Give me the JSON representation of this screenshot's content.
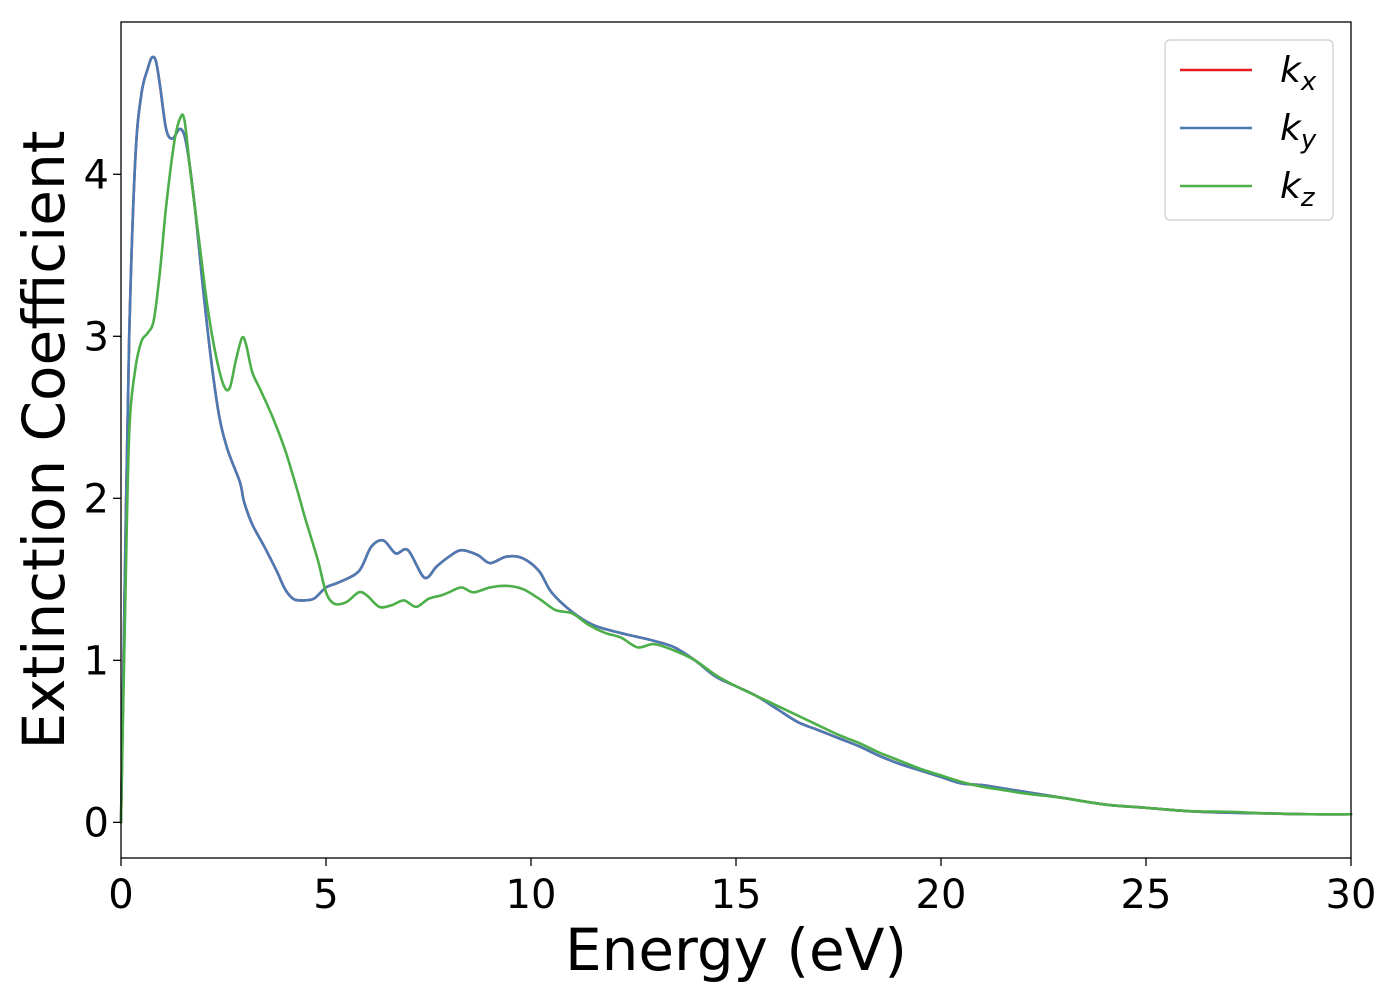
{
  "chart_data": {
    "type": "line",
    "title": "",
    "xlabel": "Energy (eV)",
    "ylabel": "Extinction Coefficient",
    "xlim": [
      0,
      30
    ],
    "ylim": [
      -0.22,
      4.94
    ],
    "xticks": [
      0,
      5,
      10,
      15,
      20,
      25,
      30
    ],
    "xtick_labels": [
      "0",
      "5",
      "10",
      "15",
      "20",
      "25",
      "30"
    ],
    "yticks": [
      0,
      1,
      2,
      3,
      4
    ],
    "ytick_labels": [
      "0",
      "1",
      "2",
      "3",
      "4"
    ],
    "grid": false,
    "legend_position": "top-right",
    "series": [
      {
        "name": "k",
        "subscript": "x",
        "color": "#e41a1c",
        "x": [
          0,
          0.1,
          0.2,
          0.35,
          0.5,
          0.65,
          0.75,
          0.85,
          0.95,
          1.1,
          1.25,
          1.45,
          1.6,
          1.8,
          2.0,
          2.2,
          2.4,
          2.6,
          2.9,
          3.0,
          3.2,
          3.5,
          3.8,
          4.0,
          4.2,
          4.4,
          4.7,
          5.0,
          5.3,
          5.8,
          6.1,
          6.4,
          6.7,
          7.0,
          7.4,
          7.7,
          8.0,
          8.3,
          8.7,
          9.0,
          9.4,
          9.8,
          10.2,
          10.5,
          11.0,
          11.5,
          12.0,
          12.5,
          13.0,
          13.5,
          14.0,
          14.5,
          15.0,
          15.5,
          16.0,
          16.5,
          17.0,
          17.5,
          18.0,
          18.5,
          19.0,
          19.5,
          20.0,
          20.5,
          21.0,
          21.5,
          22.0,
          22.5,
          23.0,
          24.0,
          25.0,
          26.0,
          27.0,
          28.0,
          29.0,
          30.0
        ],
        "values": [
          0.0,
          1.6,
          3.0,
          4.1,
          4.5,
          4.65,
          4.72,
          4.7,
          4.55,
          4.28,
          4.22,
          4.28,
          4.18,
          3.8,
          3.3,
          2.85,
          2.5,
          2.3,
          2.1,
          1.98,
          1.84,
          1.7,
          1.55,
          1.44,
          1.38,
          1.37,
          1.38,
          1.45,
          1.48,
          1.55,
          1.7,
          1.74,
          1.66,
          1.68,
          1.51,
          1.58,
          1.64,
          1.68,
          1.65,
          1.6,
          1.64,
          1.63,
          1.55,
          1.42,
          1.3,
          1.22,
          1.18,
          1.15,
          1.12,
          1.08,
          1.0,
          0.9,
          0.84,
          0.78,
          0.7,
          0.62,
          0.57,
          0.52,
          0.47,
          0.41,
          0.36,
          0.32,
          0.28,
          0.24,
          0.23,
          0.21,
          0.19,
          0.17,
          0.15,
          0.11,
          0.09,
          0.07,
          0.06,
          0.055,
          0.05,
          0.05
        ]
      },
      {
        "name": "k",
        "subscript": "y",
        "color": "#4a7bb5",
        "x": [
          0,
          0.1,
          0.2,
          0.35,
          0.5,
          0.65,
          0.75,
          0.85,
          0.95,
          1.1,
          1.25,
          1.45,
          1.6,
          1.8,
          2.0,
          2.2,
          2.4,
          2.6,
          2.9,
          3.0,
          3.2,
          3.5,
          3.8,
          4.0,
          4.2,
          4.4,
          4.7,
          5.0,
          5.3,
          5.8,
          6.1,
          6.4,
          6.7,
          7.0,
          7.4,
          7.7,
          8.0,
          8.3,
          8.7,
          9.0,
          9.4,
          9.8,
          10.2,
          10.5,
          11.0,
          11.5,
          12.0,
          12.5,
          13.0,
          13.5,
          14.0,
          14.5,
          15.0,
          15.5,
          16.0,
          16.5,
          17.0,
          17.5,
          18.0,
          18.5,
          19.0,
          19.5,
          20.0,
          20.5,
          21.0,
          21.5,
          22.0,
          22.5,
          23.0,
          24.0,
          25.0,
          26.0,
          27.0,
          28.0,
          29.0,
          30.0
        ],
        "values": [
          0.0,
          1.6,
          3.0,
          4.1,
          4.5,
          4.65,
          4.72,
          4.7,
          4.55,
          4.28,
          4.22,
          4.28,
          4.18,
          3.8,
          3.3,
          2.85,
          2.5,
          2.3,
          2.1,
          1.98,
          1.84,
          1.7,
          1.55,
          1.44,
          1.38,
          1.37,
          1.38,
          1.45,
          1.48,
          1.55,
          1.7,
          1.74,
          1.66,
          1.68,
          1.51,
          1.58,
          1.64,
          1.68,
          1.65,
          1.6,
          1.64,
          1.63,
          1.55,
          1.42,
          1.3,
          1.22,
          1.18,
          1.15,
          1.12,
          1.08,
          1.0,
          0.9,
          0.84,
          0.78,
          0.7,
          0.62,
          0.57,
          0.52,
          0.47,
          0.41,
          0.36,
          0.32,
          0.28,
          0.24,
          0.23,
          0.21,
          0.19,
          0.17,
          0.15,
          0.11,
          0.09,
          0.07,
          0.06,
          0.055,
          0.05,
          0.05
        ]
      },
      {
        "name": "k",
        "subscript": "z",
        "color": "#4daf4a",
        "x": [
          0,
          0.1,
          0.2,
          0.35,
          0.5,
          0.65,
          0.8,
          0.95,
          1.1,
          1.3,
          1.45,
          1.55,
          1.7,
          1.9,
          2.1,
          2.3,
          2.5,
          2.65,
          2.8,
          2.95,
          3.05,
          3.2,
          3.4,
          3.7,
          4.0,
          4.3,
          4.5,
          4.8,
          5.0,
          5.2,
          5.5,
          5.8,
          6.0,
          6.3,
          6.6,
          6.9,
          7.2,
          7.5,
          7.8,
          8.0,
          8.3,
          8.6,
          9.0,
          9.4,
          9.8,
          10.2,
          10.6,
          11.0,
          11.4,
          11.8,
          12.2,
          12.6,
          13.0,
          13.5,
          14.0,
          14.5,
          15.0,
          15.5,
          16.0,
          16.5,
          17.0,
          17.5,
          18.0,
          18.5,
          19.0,
          19.5,
          20.0,
          20.5,
          21.0,
          21.5,
          22.0,
          22.5,
          23.0,
          24.0,
          25.0,
          26.0,
          27.0,
          28.0,
          29.0,
          30.0
        ],
        "values": [
          0.0,
          1.3,
          2.4,
          2.8,
          2.97,
          3.02,
          3.1,
          3.4,
          3.8,
          4.2,
          4.35,
          4.33,
          4.0,
          3.6,
          3.2,
          2.9,
          2.7,
          2.68,
          2.85,
          2.99,
          2.95,
          2.78,
          2.67,
          2.5,
          2.3,
          2.05,
          1.87,
          1.62,
          1.42,
          1.35,
          1.36,
          1.42,
          1.4,
          1.33,
          1.34,
          1.37,
          1.33,
          1.38,
          1.4,
          1.42,
          1.45,
          1.42,
          1.45,
          1.46,
          1.44,
          1.38,
          1.31,
          1.29,
          1.22,
          1.17,
          1.14,
          1.08,
          1.1,
          1.06,
          1.0,
          0.91,
          0.84,
          0.78,
          0.72,
          0.66,
          0.6,
          0.54,
          0.49,
          0.43,
          0.38,
          0.33,
          0.29,
          0.25,
          0.22,
          0.2,
          0.18,
          0.165,
          0.15,
          0.11,
          0.09,
          0.07,
          0.065,
          0.055,
          0.05,
          0.05
        ]
      }
    ]
  }
}
